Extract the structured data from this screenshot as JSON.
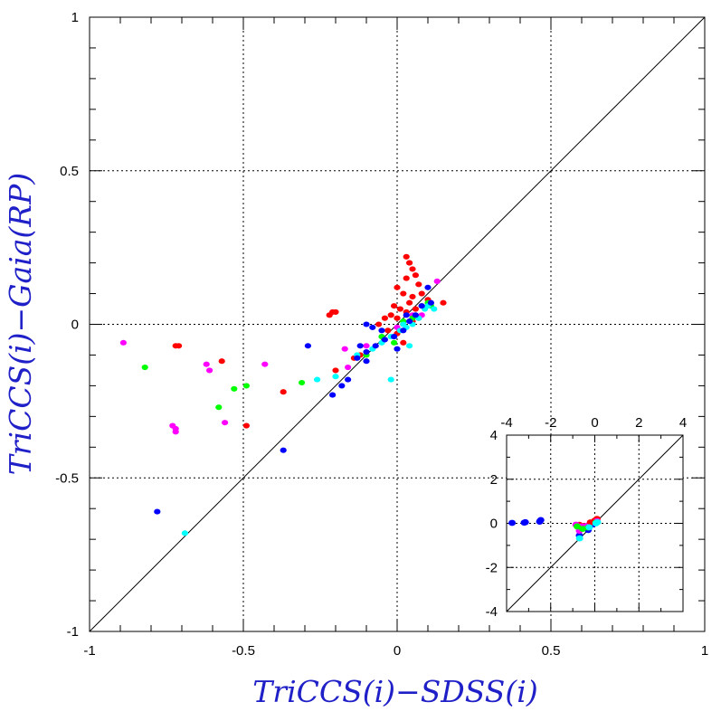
{
  "chart_data": [
    {
      "type": "scatter",
      "xlabel": "TriCCS(i)−SDSS(i)",
      "ylabel": "TriCCS(i)−Gaia(RP)",
      "xlim": [
        -1,
        1
      ],
      "ylim": [
        -1,
        1
      ],
      "xticks": [
        "-1",
        "-0.5",
        "0",
        "0.5",
        "1"
      ],
      "yticks": [
        "-1",
        "-0.5",
        "0",
        "0.5",
        "1"
      ],
      "grid": "dotted lines at -0.5, 0, 0.5",
      "reference_line": "y = x",
      "series": [
        {
          "color": "#ff0000",
          "points": [
            [
              0.03,
              0.22
            ],
            [
              0.04,
              0.2
            ],
            [
              0.05,
              0.18
            ],
            [
              0.06,
              0.16
            ],
            [
              0.03,
              0.15
            ],
            [
              0.07,
              0.13
            ],
            [
              0.0,
              0.12
            ],
            [
              0.02,
              0.1
            ],
            [
              0.05,
              0.09
            ],
            [
              0.08,
              0.1
            ],
            [
              0.04,
              0.07
            ],
            [
              0.1,
              0.08
            ],
            [
              -0.01,
              0.06
            ],
            [
              0.01,
              0.05
            ],
            [
              0.03,
              0.04
            ],
            [
              0.06,
              0.05
            ],
            [
              0.08,
              0.06
            ],
            [
              -0.02,
              0.03
            ],
            [
              0.0,
              0.02
            ],
            [
              0.02,
              0.0
            ],
            [
              0.05,
              0.01
            ],
            [
              -0.04,
              0.02
            ],
            [
              -0.06,
              0.0
            ],
            [
              -0.03,
              -0.02
            ],
            [
              0.0,
              -0.03
            ],
            [
              -0.21,
              0.04
            ],
            [
              -0.22,
              0.03
            ],
            [
              -0.2,
              0.04
            ],
            [
              0.15,
              0.07
            ],
            [
              -0.72,
              -0.07
            ],
            [
              -0.71,
              -0.07
            ],
            [
              -0.57,
              -0.12
            ],
            [
              -0.37,
              -0.22
            ],
            [
              -0.49,
              -0.33
            ],
            [
              -0.2,
              -0.15
            ],
            [
              -0.12,
              -0.1
            ],
            [
              -0.14,
              -0.11
            ],
            [
              0.02,
              -0.06
            ],
            [
              0.07,
              0.02
            ]
          ]
        },
        {
          "color": "#ff00ff",
          "points": [
            [
              -0.89,
              -0.06
            ],
            [
              -0.73,
              -0.33
            ],
            [
              -0.72,
              -0.34
            ],
            [
              -0.72,
              -0.35
            ],
            [
              -0.62,
              -0.13
            ],
            [
              -0.61,
              -0.15
            ],
            [
              -0.56,
              -0.32
            ],
            [
              -0.43,
              -0.13
            ],
            [
              -0.17,
              -0.08
            ],
            [
              -0.16,
              -0.14
            ],
            [
              -0.1,
              -0.07
            ],
            [
              0.0,
              -0.01
            ],
            [
              0.05,
              0.03
            ],
            [
              0.13,
              0.14
            ],
            [
              0.08,
              0.03
            ]
          ]
        },
        {
          "color": "#00ff00",
          "points": [
            [
              -0.82,
              -0.14
            ],
            [
              -0.58,
              -0.27
            ],
            [
              -0.53,
              -0.21
            ],
            [
              -0.49,
              -0.2
            ],
            [
              -0.31,
              -0.19
            ],
            [
              -0.1,
              -0.1
            ],
            [
              -0.05,
              -0.04
            ],
            [
              -0.01,
              -0.06
            ],
            [
              0.02,
              0.01
            ],
            [
              0.05,
              0.02
            ],
            [
              0.08,
              0.06
            ],
            [
              0.1,
              0.07
            ],
            [
              0.11,
              0.06
            ]
          ]
        },
        {
          "color": "#00ffff",
          "points": [
            [
              -0.69,
              -0.68
            ],
            [
              -0.26,
              -0.18
            ],
            [
              -0.2,
              -0.17
            ],
            [
              -0.13,
              -0.1
            ],
            [
              -0.08,
              -0.08
            ],
            [
              -0.05,
              -0.06
            ],
            [
              -0.02,
              -0.04
            ],
            [
              0.01,
              -0.02
            ],
            [
              0.03,
              -0.01
            ],
            [
              0.05,
              0.0
            ],
            [
              0.07,
              0.02
            ],
            [
              0.09,
              0.05
            ],
            [
              0.1,
              0.06
            ],
            [
              0.12,
              0.05
            ],
            [
              0.04,
              -0.07
            ],
            [
              -0.02,
              -0.18
            ],
            [
              0.02,
              0.0
            ]
          ]
        },
        {
          "color": "#0000ff",
          "points": [
            [
              -0.78,
              -0.61
            ],
            [
              -0.37,
              -0.41
            ],
            [
              -0.29,
              -0.07
            ],
            [
              -0.21,
              -0.23
            ],
            [
              -0.18,
              -0.2
            ],
            [
              -0.16,
              -0.18
            ],
            [
              -0.13,
              -0.11
            ],
            [
              -0.1,
              -0.09
            ],
            [
              -0.07,
              -0.07
            ],
            [
              -0.04,
              -0.05
            ],
            [
              -0.01,
              -0.04
            ],
            [
              0.02,
              -0.02
            ],
            [
              0.04,
              0.01
            ],
            [
              0.06,
              0.03
            ],
            [
              0.08,
              0.06
            ],
            [
              0.1,
              0.12
            ],
            [
              -0.1,
              0.0
            ],
            [
              -0.08,
              -0.01
            ],
            [
              -0.12,
              -0.07
            ],
            [
              -0.1,
              -0.12
            ],
            [
              0.0,
              -0.08
            ],
            [
              -0.05,
              -0.02
            ],
            [
              0.03,
              0.03
            ],
            [
              0.11,
              0.07
            ]
          ]
        }
      ]
    },
    {
      "type": "scatter",
      "xlim": [
        -4,
        4
      ],
      "ylim": [
        -4,
        4
      ],
      "xticks": [
        "-4",
        "-2",
        "0",
        "2",
        "4"
      ],
      "yticks": [
        "-4",
        "-2",
        "0",
        "2",
        "4"
      ],
      "grid": "dotted lines at -2, 0, 2",
      "reference_line": "y = x",
      "series": [
        {
          "color": "#0000ff",
          "points": [
            [
              -3.75,
              0.02
            ],
            [
              -3.2,
              0.03
            ],
            [
              -3.15,
              0.05
            ],
            [
              -2.5,
              0.08
            ],
            [
              -2.45,
              0.15
            ],
            [
              -0.7,
              -0.55
            ],
            [
              -0.3,
              -0.3
            ],
            [
              -0.1,
              -0.05
            ],
            [
              0.1,
              0.1
            ]
          ]
        },
        {
          "color": "#ff0000",
          "points": [
            [
              -0.7,
              -0.07
            ],
            [
              -0.5,
              -0.12
            ],
            [
              -0.3,
              -0.1
            ],
            [
              0.0,
              0.12
            ],
            [
              0.1,
              0.2
            ],
            [
              0.05,
              0.05
            ],
            [
              -0.2,
              0.04
            ]
          ]
        },
        {
          "color": "#ff00ff",
          "points": [
            [
              -0.85,
              -0.06
            ],
            [
              -0.7,
              -0.33
            ],
            [
              -0.6,
              -0.14
            ],
            [
              -0.4,
              -0.13
            ],
            [
              0.1,
              0.1
            ]
          ]
        },
        {
          "color": "#00ff00",
          "points": [
            [
              -0.8,
              -0.14
            ],
            [
              -0.55,
              -0.25
            ],
            [
              -0.3,
              -0.19
            ],
            [
              0.05,
              0.03
            ]
          ]
        },
        {
          "color": "#00ffff",
          "points": [
            [
              -0.69,
              -0.68
            ],
            [
              -0.25,
              -0.18
            ],
            [
              0.05,
              0.0
            ],
            [
              0.12,
              0.05
            ]
          ]
        }
      ]
    }
  ]
}
